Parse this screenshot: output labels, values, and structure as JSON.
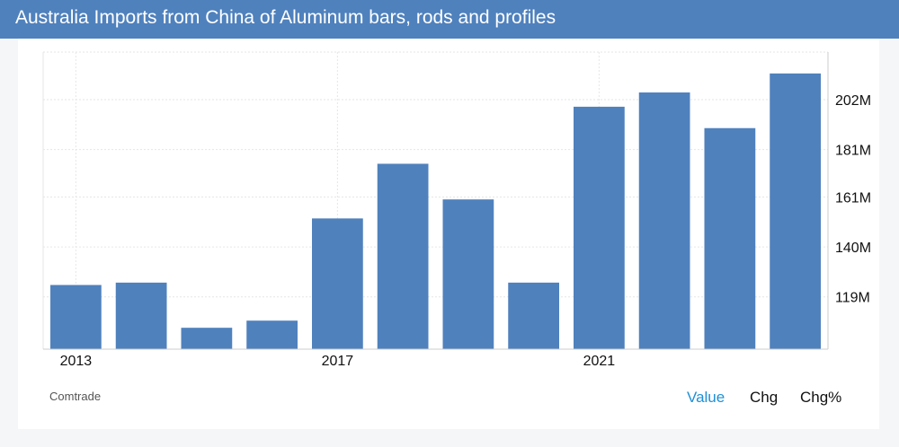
{
  "header": {
    "title": "Australia Imports from China of Aluminum bars, rods and profiles"
  },
  "footer": {
    "source": "Comtrade",
    "tabs": [
      {
        "label": "Value",
        "active": true
      },
      {
        "label": "Chg",
        "active": false
      },
      {
        "label": "Chg%",
        "active": false
      }
    ]
  },
  "colors": {
    "header": "#4f81bd",
    "bar": "#4f81bd",
    "active_tab": "#1e90d6"
  },
  "chart_data": {
    "type": "bar",
    "categories": [
      "2013",
      "2014",
      "2015",
      "2016",
      "2017",
      "2018",
      "2019",
      "2020",
      "2021",
      "2022",
      "2023",
      "2024"
    ],
    "values": [
      124,
      125,
      106,
      109,
      152,
      175,
      160,
      125,
      199,
      205,
      190,
      213
    ],
    "x_tick_labels": [
      "2013",
      "2017",
      "2021"
    ],
    "y_tick_labels": [
      "119M",
      "140M",
      "161M",
      "181M",
      "202M"
    ],
    "y_tick_values": [
      119,
      140,
      161,
      181,
      202
    ],
    "y_unit": "M",
    "ylim": [
      97,
      222
    ],
    "grid": true,
    "y_axis_side": "right"
  }
}
